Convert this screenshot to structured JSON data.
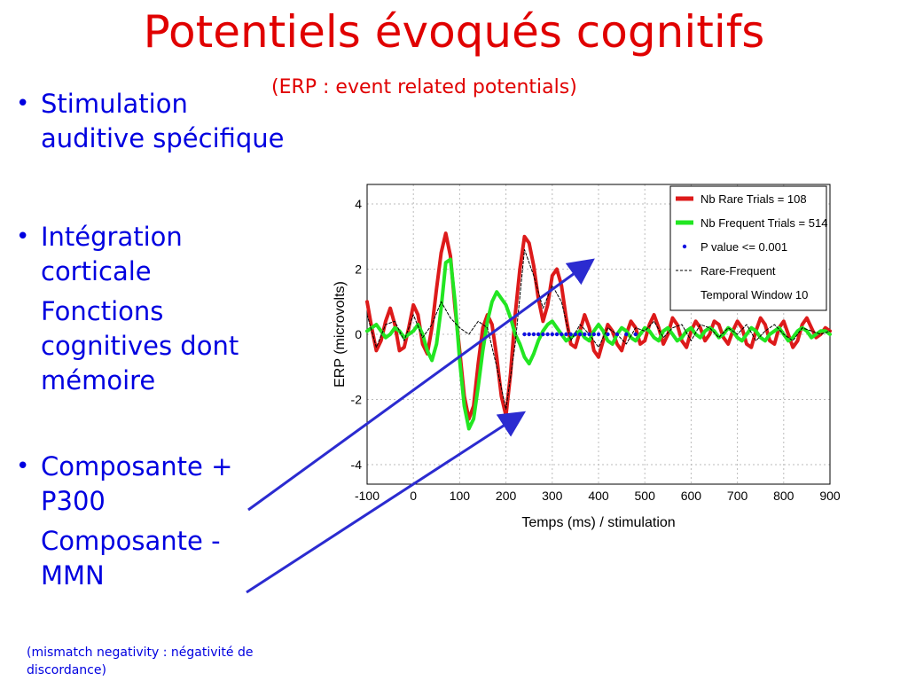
{
  "slide": {
    "title": "Potentiels évoqués cognitifs",
    "subtitle": "(ERP : event related potentials)",
    "bullets": [
      {
        "id": "stimulation",
        "lines": [
          "Stimulation",
          "auditive spécifique"
        ],
        "bullet": true
      },
      {
        "id": "integration",
        "lines": [
          "Intégration",
          "corticale"
        ],
        "bullet": true
      },
      {
        "id": "fonctions",
        "lines": [
          "Fonctions",
          "cognitives dont",
          "mémoire"
        ],
        "bullet": false
      },
      {
        "id": "p300",
        "lines": [
          "Composante +",
          "P300"
        ],
        "bullet": true
      },
      {
        "id": "mmn",
        "lines": [
          "Composante -",
          "MMN"
        ],
        "bullet": false
      }
    ],
    "bullet_glyph": "•",
    "footnote": "(mismatch negativity : négativité de discordance)",
    "text_color": "#0000e0",
    "title_color": "#e00000",
    "arrow_color": "#2b2bd0"
  },
  "chart_data": {
    "type": "line",
    "xlabel": "Temps (ms) / stimulation",
    "ylabel": "ERP (microvolts)",
    "xlim": [
      -100,
      900
    ],
    "ylim": [
      -4.6,
      4.6
    ],
    "xticks": [
      -100,
      0,
      100,
      200,
      300,
      400,
      500,
      600,
      700,
      800,
      900
    ],
    "yticks": [
      -4,
      -2,
      0,
      2,
      4
    ],
    "grid": true,
    "legend_position": "top-right",
    "legend": [
      {
        "label": "Nb Rare Trials     = 108",
        "style": "red-line"
      },
      {
        "label": "Nb Frequent Trials = 514",
        "style": "green-line"
      },
      {
        "label": "P value <= 0.001",
        "style": "blue-dot"
      },
      {
        "label": "Rare-Frequent",
        "style": "dashed"
      },
      {
        "label": "Temporal Window 10",
        "style": "none"
      }
    ],
    "series": [
      {
        "id": "rare",
        "color": "#dd1a1a",
        "x": [
          -100,
          -90,
          -80,
          -70,
          -60,
          -50,
          -40,
          -30,
          -20,
          -10,
          0,
          10,
          20,
          30,
          40,
          50,
          60,
          70,
          80,
          90,
          100,
          110,
          120,
          130,
          140,
          150,
          160,
          170,
          180,
          190,
          200,
          210,
          220,
          230,
          240,
          250,
          260,
          270,
          280,
          290,
          300,
          310,
          320,
          330,
          340,
          350,
          360,
          370,
          380,
          390,
          400,
          410,
          420,
          430,
          440,
          450,
          460,
          470,
          480,
          490,
          500,
          510,
          520,
          530,
          540,
          550,
          560,
          570,
          580,
          590,
          600,
          610,
          620,
          630,
          640,
          650,
          660,
          670,
          680,
          690,
          700,
          710,
          720,
          730,
          740,
          750,
          760,
          770,
          780,
          790,
          800,
          810,
          820,
          830,
          840,
          850,
          860,
          870,
          880,
          890,
          900
        ],
        "y": [
          1.0,
          0.2,
          -0.5,
          -0.2,
          0.4,
          0.8,
          0.3,
          -0.5,
          -0.4,
          0.2,
          0.9,
          0.6,
          -0.3,
          -0.6,
          0.2,
          1.4,
          2.5,
          3.1,
          2.4,
          0.8,
          -0.5,
          -1.9,
          -2.6,
          -2.2,
          -0.9,
          0.2,
          0.6,
          0.3,
          -0.7,
          -1.9,
          -2.5,
          -1.2,
          0.6,
          2.0,
          3.0,
          2.8,
          2.1,
          1.1,
          0.4,
          0.9,
          1.8,
          2.0,
          1.5,
          0.5,
          -0.3,
          -0.4,
          0.1,
          0.6,
          0.2,
          -0.5,
          -0.7,
          -0.2,
          0.3,
          0.1,
          -0.3,
          -0.5,
          0.0,
          0.4,
          0.2,
          -0.3,
          -0.2,
          0.3,
          0.6,
          0.2,
          -0.3,
          0.0,
          0.5,
          0.3,
          -0.2,
          -0.4,
          0.1,
          0.4,
          0.2,
          -0.2,
          0.0,
          0.4,
          0.3,
          -0.1,
          -0.3,
          0.1,
          0.4,
          0.2,
          -0.3,
          -0.4,
          0.1,
          0.5,
          0.3,
          -0.2,
          -0.3,
          0.2,
          0.4,
          0.0,
          -0.4,
          -0.2,
          0.3,
          0.5,
          0.2,
          -0.1,
          0.0,
          0.2,
          0.1
        ]
      },
      {
        "id": "frequent",
        "color": "#22e622",
        "x": [
          -100,
          -90,
          -80,
          -70,
          -60,
          -50,
          -40,
          -30,
          -20,
          -10,
          0,
          10,
          20,
          30,
          40,
          50,
          60,
          70,
          80,
          90,
          100,
          110,
          120,
          130,
          140,
          150,
          160,
          170,
          180,
          190,
          200,
          210,
          220,
          230,
          240,
          250,
          260,
          270,
          280,
          290,
          300,
          310,
          320,
          330,
          340,
          350,
          360,
          370,
          380,
          390,
          400,
          410,
          420,
          430,
          440,
          450,
          460,
          470,
          480,
          490,
          500,
          510,
          520,
          530,
          540,
          550,
          560,
          570,
          580,
          590,
          600,
          610,
          620,
          630,
          640,
          650,
          660,
          670,
          680,
          690,
          700,
          710,
          720,
          730,
          740,
          750,
          760,
          770,
          780,
          790,
          800,
          810,
          820,
          830,
          840,
          850,
          860,
          870,
          880,
          890,
          900
        ],
        "y": [
          0.1,
          0.2,
          0.3,
          0.1,
          -0.1,
          0.0,
          0.2,
          0.1,
          -0.1,
          0.0,
          0.1,
          0.3,
          0.0,
          -0.5,
          -0.8,
          -0.3,
          0.8,
          2.2,
          2.3,
          1.0,
          -0.8,
          -2.2,
          -2.9,
          -2.6,
          -1.6,
          -0.5,
          0.4,
          1.0,
          1.3,
          1.1,
          0.9,
          0.5,
          0.0,
          -0.3,
          -0.7,
          -0.9,
          -0.6,
          -0.2,
          0.1,
          0.3,
          0.4,
          0.2,
          0.0,
          -0.2,
          -0.1,
          0.0,
          0.1,
          -0.1,
          -0.2,
          0.1,
          0.3,
          0.1,
          -0.2,
          -0.3,
          0.0,
          0.2,
          0.1,
          -0.1,
          -0.2,
          0.0,
          0.2,
          0.1,
          -0.1,
          -0.2,
          0.1,
          0.2,
          0.0,
          -0.2,
          -0.1,
          0.1,
          0.2,
          0.0,
          -0.1,
          0.1,
          0.2,
          0.1,
          -0.1,
          0.0,
          0.2,
          0.1,
          -0.1,
          -0.2,
          0.0,
          0.2,
          0.1,
          -0.1,
          -0.2,
          0.0,
          0.1,
          0.2,
          0.0,
          -0.2,
          -0.1,
          0.1,
          0.2,
          0.1,
          -0.1,
          0.0,
          0.1,
          0.1,
          0.0
        ]
      },
      {
        "id": "diff",
        "color": "#000000",
        "style": "dashed",
        "x": [
          -100,
          -80,
          -60,
          -40,
          -20,
          0,
          20,
          40,
          60,
          80,
          100,
          120,
          140,
          160,
          180,
          200,
          220,
          240,
          260,
          280,
          300,
          320,
          340,
          360,
          380,
          400,
          420,
          440,
          460,
          480,
          500,
          520,
          540,
          560,
          580,
          600,
          620,
          640,
          660,
          680,
          700,
          720,
          740,
          760,
          780,
          800,
          820,
          840,
          860,
          880,
          900
        ],
        "y": [
          0.6,
          -0.4,
          0.3,
          0.4,
          -0.2,
          0.6,
          -0.1,
          0.3,
          1.0,
          0.5,
          0.2,
          0.0,
          0.4,
          0.2,
          -1.0,
          -2.3,
          -0.3,
          2.6,
          1.8,
          0.8,
          1.5,
          1.0,
          -0.2,
          0.3,
          0.0,
          -0.4,
          0.2,
          0.0,
          -0.3,
          0.2,
          0.1,
          0.4,
          -0.1,
          0.2,
          0.3,
          -0.2,
          0.3,
          0.2,
          -0.1,
          0.2,
          0.0,
          0.3,
          -0.2,
          0.1,
          0.3,
          0.0,
          -0.2,
          0.2,
          0.1,
          0.0,
          0.1
        ]
      }
    ],
    "significance_points": {
      "color": "#1010e0",
      "y": 0,
      "x": [
        240,
        250,
        260,
        270,
        280,
        290,
        300,
        310,
        320,
        330,
        340,
        350,
        360,
        370,
        380,
        390,
        400,
        420,
        440,
        460,
        480
      ]
    }
  }
}
